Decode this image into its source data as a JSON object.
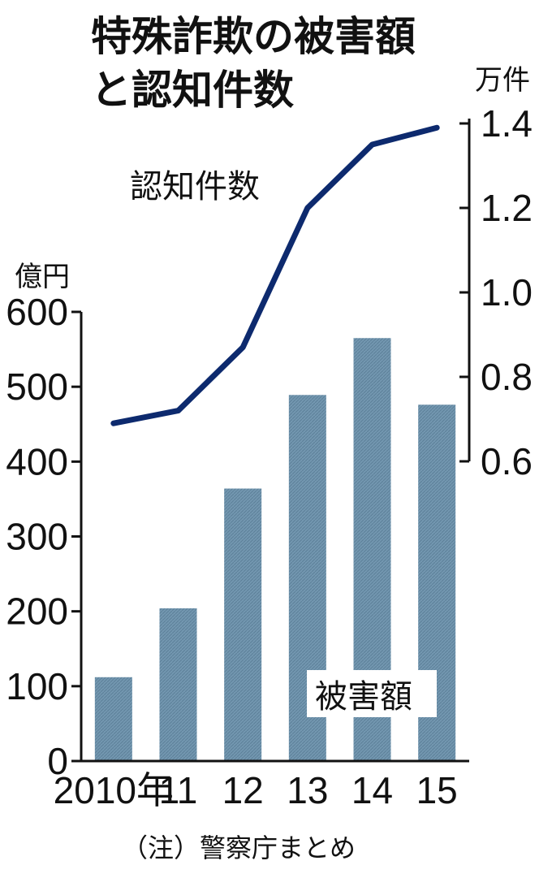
{
  "chart_data": {
    "type": "bar",
    "title_line1": "特殊詐欺の被害額",
    "title_line2": "と認知件数",
    "categories": [
      "2010年",
      "11",
      "12",
      "13",
      "14",
      "15"
    ],
    "left_axis": {
      "unit": "億円",
      "ylim": [
        0,
        600
      ],
      "ticks": [
        "0",
        "100",
        "200",
        "300",
        "400",
        "500",
        "600"
      ]
    },
    "right_axis": {
      "unit": "万件",
      "ylim": [
        0.6,
        1.4
      ],
      "ticks": [
        "0.6",
        "0.8",
        "1.0",
        "1.2",
        "1.4"
      ]
    },
    "series": [
      {
        "name": "被害額",
        "type": "bar",
        "axis": "left",
        "values": [
          112,
          204,
          364,
          489,
          565,
          476
        ],
        "color": "#6f93ad"
      },
      {
        "name": "認知件数",
        "type": "line",
        "axis": "right",
        "values": [
          0.69,
          0.72,
          0.87,
          1.2,
          1.35,
          1.39
        ],
        "color": "#0d2a6e"
      }
    ],
    "note": "（注）警察庁まとめ",
    "grid": false
  }
}
